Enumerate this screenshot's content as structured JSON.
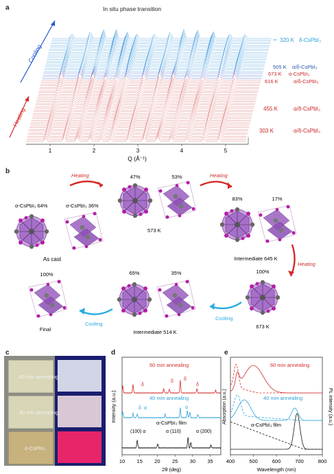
{
  "panel_a": {
    "label": "a",
    "title": "In situ phase transition",
    "x_axis_label": "Q (Å⁻¹)",
    "x_ticks": [
      "1",
      "2",
      "3",
      "4",
      "5"
    ],
    "cooling_label": "Cooling",
    "heating_label": "Heating",
    "annotations": [
      {
        "temp": "320 K",
        "phase": "δ-CsPbI₃",
        "color": "#2aa1d9"
      },
      {
        "temp": "505 K",
        "phase": "α/δ-CsPbI₃",
        "color": "#2255aa"
      },
      {
        "temp": "673 K",
        "phase": "α-CsPbI₃",
        "color": "#cc2222"
      },
      {
        "temp": "616 K",
        "phase": "α/δ-CsPbI₃",
        "color": "#cc2222"
      },
      {
        "temp": "455 K",
        "phase": "α/δ-CsPbI₃",
        "color": "#cc2222"
      },
      {
        "temp": "303 K",
        "phase": "α/δ-CsPbI₃",
        "color": "#cc2222"
      }
    ]
  },
  "panel_b": {
    "label": "b",
    "alpha_cast": "α-CsPbI₃ 64%",
    "sigma_cast": "σ-CsPbI₃ 36%",
    "as_cast": "As cast",
    "heating1": "Heating",
    "pct_47": "47%",
    "pct_53": "53%",
    "temp_573": "573 K",
    "heating2": "Heating",
    "pct_83": "83%",
    "pct_17": "17%",
    "intermediate_645": "Intermediate 645 K",
    "heating3": "Heating",
    "pct_100_right": "100%",
    "temp_673": "673 K",
    "cooling1": "Cooling",
    "pct_65": "65%",
    "pct_35": "35%",
    "intermediate_514": "Intermediate 514 K",
    "cooling2": "Cooling",
    "pct_100_left": "100%",
    "final": "Final"
  },
  "panel_c": {
    "label": "c",
    "film_60": "60 min annealing",
    "film_40": "40 min annealing",
    "film_alpha": "α-CsPbI₃"
  },
  "panel_d": {
    "label": "d",
    "trace_60": "60 min annealing",
    "trace_40": "40 min annealing",
    "trace_film": "α-CsPbI₃ film",
    "delta": "δ",
    "alpha": "α",
    "peak_100": "(100) α",
    "peak_110": "α (110)",
    "peak_200": "α (200)",
    "y_label": "Intensity (a.u.)",
    "x_label": "2θ (deg)",
    "x_ticks": [
      "10",
      "15",
      "20",
      "25",
      "30",
      "35"
    ]
  },
  "panel_e": {
    "label": "e",
    "trace_60": "60 min annealing",
    "trace_40": "40 min annealing",
    "trace_film": "α-CsPbI₃ film",
    "y_left": "Absorption (a.u.)",
    "y_right": "PL intensity (a.u.)",
    "x_label": "Wavelength (nm)",
    "x_ticks": [
      "400",
      "500",
      "600",
      "700",
      "800"
    ]
  }
}
